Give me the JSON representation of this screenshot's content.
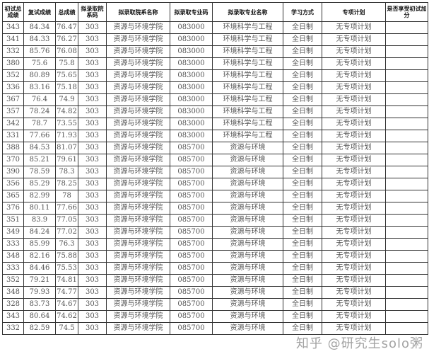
{
  "headers": [
    "初试总成绩",
    "复试成绩",
    "总成绩",
    "拟录取院系码",
    "拟录取院系名称",
    "拟录取专业码",
    "拟录取专业名称",
    "学习方式",
    "专项计划",
    "是否享受初试加分"
  ],
  "rows": [
    [
      "343",
      "84.34",
      "76.47",
      "303",
      "资源与环境学院",
      "083000",
      "环境科学与工程",
      "全日制",
      "无专项计划",
      ""
    ],
    [
      "341",
      "84.33",
      "76.27",
      "303",
      "资源与环境学院",
      "083000",
      "环境科学与工程",
      "全日制",
      "无专项计划",
      ""
    ],
    [
      "332",
      "85.76",
      "76.08",
      "303",
      "资源与环境学院",
      "083000",
      "环境科学与工程",
      "全日制",
      "无专项计划",
      ""
    ],
    [
      "380",
      "75.6",
      "75.8",
      "303",
      "资源与环境学院",
      "083000",
      "环境科学与工程",
      "全日制",
      "无专项计划",
      ""
    ],
    [
      "352",
      "80.89",
      "75.65",
      "303",
      "资源与环境学院",
      "083000",
      "环境科学与工程",
      "全日制",
      "无专项计划",
      ""
    ],
    [
      "336",
      "83.16",
      "75.18",
      "303",
      "资源与环境学院",
      "083000",
      "环境科学与工程",
      "全日制",
      "无专项计划",
      ""
    ],
    [
      "367",
      "76.4",
      "74.9",
      "303",
      "资源与环境学院",
      "083000",
      "环境科学与工程",
      "全日制",
      "无专项计划",
      ""
    ],
    [
      "357",
      "78.24",
      "74.82",
      "303",
      "资源与环境学院",
      "083000",
      "环境科学与工程",
      "全日制",
      "无专项计划",
      ""
    ],
    [
      "342",
      "78.7",
      "73.55",
      "303",
      "资源与环境学院",
      "083000",
      "环境科学与工程",
      "全日制",
      "无专项计划",
      ""
    ],
    [
      "331",
      "77.66",
      "71.93",
      "303",
      "资源与环境学院",
      "083000",
      "环境科学与工程",
      "全日制",
      "无专项计划",
      ""
    ],
    [
      "388",
      "84.53",
      "81.07",
      "303",
      "资源与环境学院",
      "085700",
      "资源与环境",
      "全日制",
      "无专项计划",
      ""
    ],
    [
      "370",
      "85.21",
      "79.61",
      "303",
      "资源与环境学院",
      "085700",
      "资源与环境",
      "全日制",
      "无专项计划",
      ""
    ],
    [
      "390",
      "78.59",
      "78.3",
      "303",
      "资源与环境学院",
      "085700",
      "资源与环境",
      "全日制",
      "无专项计划",
      ""
    ],
    [
      "356",
      "85.29",
      "78.25",
      "303",
      "资源与环境学院",
      "085700",
      "资源与环境",
      "全日制",
      "无专项计划",
      ""
    ],
    [
      "365",
      "82.99",
      "78",
      "303",
      "资源与环境学院",
      "085700",
      "资源与环境",
      "全日制",
      "无专项计划",
      ""
    ],
    [
      "376",
      "80.11",
      "77.66",
      "303",
      "资源与环境学院",
      "085700",
      "资源与环境",
      "全日制",
      "无专项计划",
      ""
    ],
    [
      "351",
      "83.9",
      "77.05",
      "303",
      "资源与环境学院",
      "085700",
      "资源与环境",
      "全日制",
      "无专项计划",
      ""
    ],
    [
      "349",
      "84.24",
      "77.02",
      "303",
      "资源与环境学院",
      "085700",
      "资源与环境",
      "全日制",
      "无专项计划",
      ""
    ],
    [
      "333",
      "85.99",
      "76.3",
      "303",
      "资源与环境学院",
      "085700",
      "资源与环境",
      "全日制",
      "无专项计划",
      ""
    ],
    [
      "348",
      "82.16",
      "75.88",
      "303",
      "资源与环境学院",
      "085700",
      "资源与环境",
      "全日制",
      "无专项计划",
      ""
    ],
    [
      "333",
      "84.46",
      "75.53",
      "303",
      "资源与环境学院",
      "085700",
      "资源与环境",
      "全日制",
      "无专项计划",
      ""
    ],
    [
      "352",
      "79.21",
      "74.81",
      "303",
      "资源与环境学院",
      "085700",
      "资源与环境",
      "全日制",
      "无专项计划",
      ""
    ],
    [
      "348",
      "79.93",
      "74.77",
      "303",
      "资源与环境学院",
      "085700",
      "资源与环境",
      "全日制",
      "无专项计划",
      ""
    ],
    [
      "328",
      "83.73",
      "74.67",
      "303",
      "资源与环境学院",
      "085700",
      "资源与环境",
      "全日制",
      "无专项计划",
      ""
    ],
    [
      "343",
      "80.64",
      "74.62",
      "303",
      "资源与环境学院",
      "085700",
      "资源与环境",
      "全日制",
      "无专项计划",
      ""
    ],
    [
      "332",
      "82.59",
      "74.5",
      "303",
      "资源与环境学院",
      "085700",
      "资源与环境",
      "全日制",
      "无专项计划",
      ""
    ]
  ],
  "watermark": "知乎 @研究生solo粥"
}
